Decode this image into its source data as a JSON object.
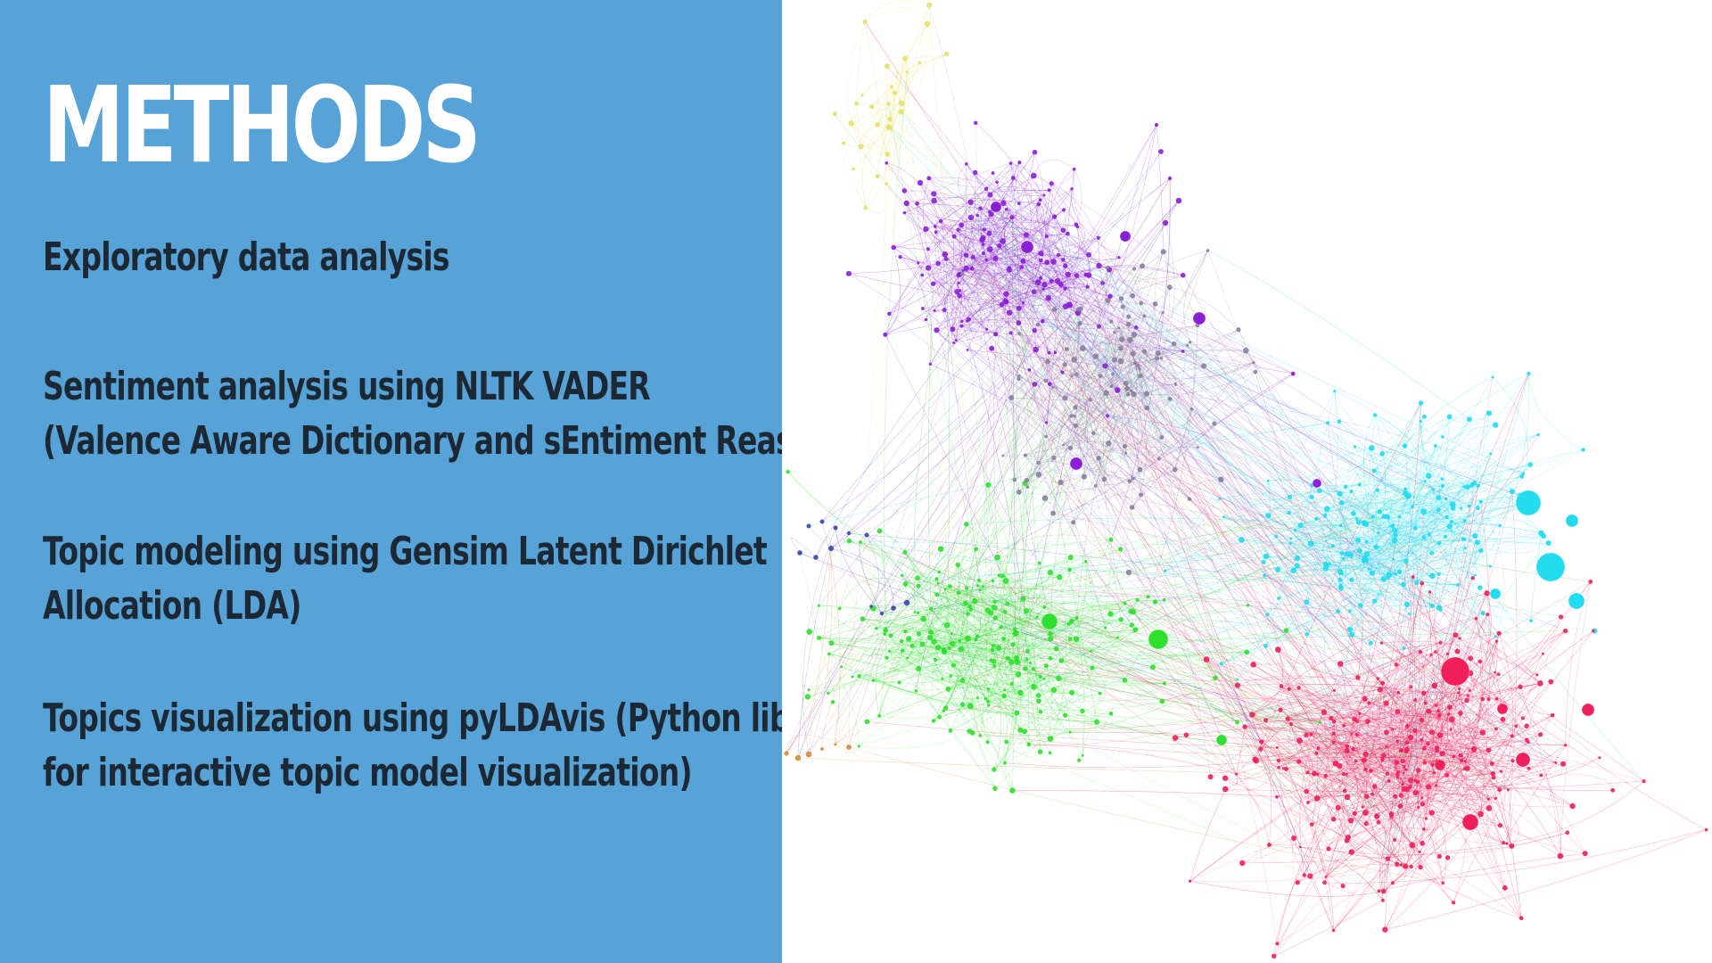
{
  "slide": {
    "title": "METHODS",
    "background_color": "#57a2d6",
    "text_color": "#1c2833",
    "bullets": [
      {
        "lines": [
          "Exploratory data analysis"
        ]
      },
      {
        "lines": [
          "Sentiment analysis using NLTK VADER",
          "(Valence Aware Dictionary and sEntiment Reasoner)"
        ]
      },
      {
        "lines": [
          "Topic modeling using Gensim Latent Dirichlet",
          "Allocation (LDA)"
        ]
      },
      {
        "lines": [
          "Topics visualization using pyLDAvis (Python library",
          "for interactive topic model visualization)"
        ]
      }
    ]
  },
  "network_image": {
    "cluster_colors": {
      "purple": "#8a1fd6",
      "green": "#2ee02e",
      "cyan": "#22dcef",
      "red": "#f01f5a",
      "yellow": "#e6e06a",
      "blue": "#3346a8",
      "orange": "#d98a3a",
      "gray": "#8a7fa0"
    }
  }
}
